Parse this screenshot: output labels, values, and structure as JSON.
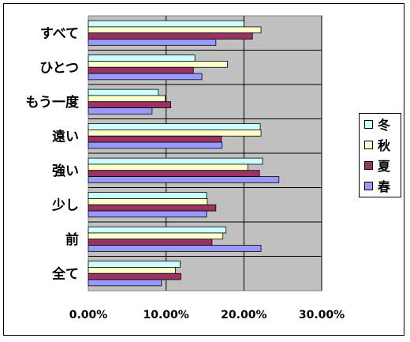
{
  "chart_data": {
    "type": "bar",
    "orientation": "horizontal",
    "categories": [
      "すべて",
      "ひとつ",
      "もう一度",
      "遠い",
      "強い",
      "少し",
      "前",
      "全て"
    ],
    "series": [
      {
        "name": "冬",
        "color": "#ccffff",
        "values": [
          0.2,
          0.137,
          0.09,
          0.221,
          0.224,
          0.152,
          0.177,
          0.118
        ]
      },
      {
        "name": "秋",
        "color": "#ffffcc",
        "values": [
          0.222,
          0.179,
          0.099,
          0.222,
          0.205,
          0.153,
          0.173,
          0.112
        ]
      },
      {
        "name": "夏",
        "color": "#993366",
        "values": [
          0.211,
          0.135,
          0.106,
          0.171,
          0.22,
          0.164,
          0.159,
          0.119
        ]
      },
      {
        "name": "春",
        "color": "#9999ff",
        "values": [
          0.164,
          0.146,
          0.082,
          0.172,
          0.245,
          0.152,
          0.222,
          0.094
        ]
      }
    ],
    "xlim": [
      0,
      0.3
    ],
    "x_ticks": [
      "0.00%",
      "10.00%",
      "20.00%",
      "30.00%"
    ],
    "plot_background": "#c0c0c0",
    "grid": true,
    "legend_position": "right"
  }
}
